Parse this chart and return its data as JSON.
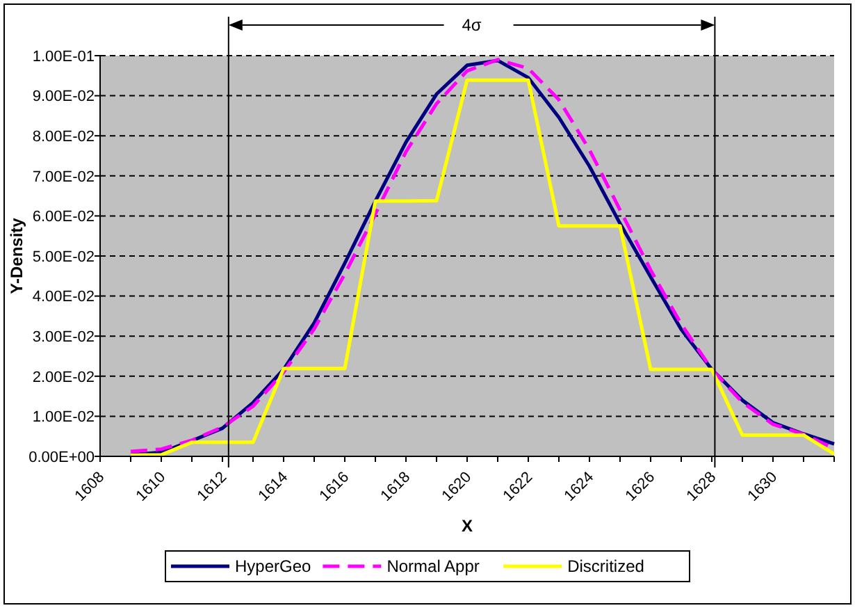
{
  "chart_data": {
    "type": "line",
    "xlabel": "X",
    "ylabel": "Y-Density",
    "annotations": [
      "4σ"
    ],
    "x": [
      1609,
      1610,
      1611,
      1612,
      1613,
      1614,
      1615,
      1616,
      1617,
      1618,
      1619,
      1620,
      1621,
      1622,
      1623,
      1624,
      1625,
      1626,
      1627,
      1628,
      1629,
      1630,
      1631,
      1632
    ],
    "series": [
      {
        "name": "HyperGeo",
        "color": "#000080",
        "line_style": "solid",
        "values": [
          0.0004,
          0.001,
          0.0039,
          0.007,
          0.0134,
          0.0217,
          0.0333,
          0.0482,
          0.0637,
          0.0784,
          0.0904,
          0.0976,
          0.0988,
          0.0945,
          0.0846,
          0.0724,
          0.0581,
          0.0448,
          0.0317,
          0.0217,
          0.014,
          0.0084,
          0.0056,
          0.0031
        ]
      },
      {
        "name": "Normal Appr",
        "color": "#ff00ff",
        "line_style": "dashed",
        "values": [
          0.0012,
          0.0018,
          0.004,
          0.0073,
          0.0125,
          0.021,
          0.0318,
          0.0455,
          0.0605,
          0.076,
          0.088,
          0.0962,
          0.099,
          0.0968,
          0.089,
          0.0765,
          0.0615,
          0.0465,
          0.033,
          0.0217,
          0.0135,
          0.008,
          0.0055,
          0.002
        ]
      },
      {
        "name": "Discritized",
        "color": "#ffff00",
        "line_style": "solid",
        "values": [
          0.0003,
          0.0004,
          0.0035,
          0.0035,
          0.0035,
          0.0219,
          0.0219,
          0.0219,
          0.0637,
          0.0637,
          0.0638,
          0.0939,
          0.0939,
          0.0939,
          0.0575,
          0.0575,
          0.0575,
          0.0217,
          0.0217,
          0.0217,
          0.0053,
          0.0053,
          0.0053,
          0.0006
        ]
      }
    ],
    "xlim": [
      1608,
      1632
    ],
    "xticks": [
      1608,
      {
        "value": 1609,
        "label": null
      },
      1610,
      {
        "value": 1611,
        "label": null
      },
      1612,
      {
        "value": 1613,
        "label": null
      },
      1614,
      {
        "value": 1615,
        "label": null
      },
      1616,
      {
        "value": 1617,
        "label": null
      },
      1618,
      {
        "value": 1619,
        "label": null
      },
      1620,
      {
        "value": 1621,
        "label": null
      },
      1622,
      {
        "value": 1623,
        "label": null
      },
      1624,
      {
        "value": 1625,
        "label": null
      },
      1626,
      {
        "value": 1627,
        "label": null
      },
      1628,
      {
        "value": 1629,
        "label": null
      },
      1630,
      {
        "value": 1631,
        "label": null
      },
      {
        "value": 1632,
        "label": null
      }
    ],
    "ylim": [
      0,
      0.1
    ],
    "yticks": [
      {
        "value": 0,
        "label": "0.00E+00"
      },
      {
        "value": 0.01,
        "label": "1.00E-02"
      },
      {
        "value": 0.02,
        "label": "2.00E-02"
      },
      {
        "value": 0.03,
        "label": "3.00E-02"
      },
      {
        "value": 0.04,
        "label": "4.00E-02"
      },
      {
        "value": 0.05,
        "label": "5.00E-02"
      },
      {
        "value": 0.06,
        "label": "6.00E-02"
      },
      {
        "value": 0.07,
        "label": "7.00E-02"
      },
      {
        "value": 0.08,
        "label": "8.00E-02"
      },
      {
        "value": 0.09,
        "label": "9.00E-02"
      },
      {
        "value": 0.1,
        "label": "1.00E-01"
      }
    ],
    "ref_lines": [
      {
        "axis": "x",
        "value": 1612.2,
        "color": "#000000"
      },
      {
        "axis": "x",
        "value": 1628.1,
        "color": "#000000"
      }
    ],
    "grid": "y",
    "legend": "bottom",
    "marker": "none"
  }
}
